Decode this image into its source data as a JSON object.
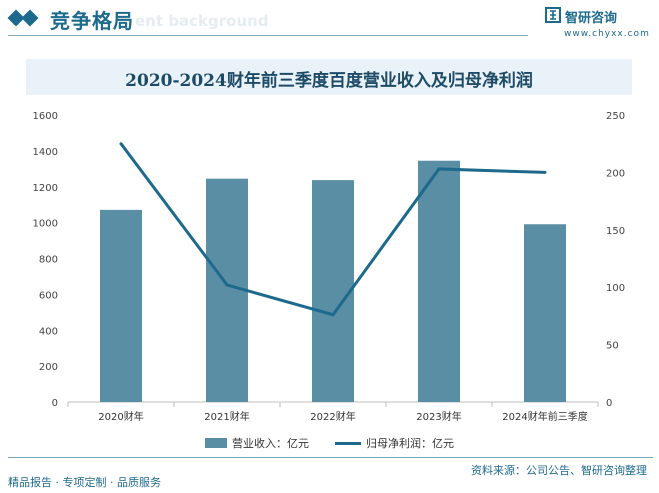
{
  "header": {
    "title": "竞争格局",
    "ghost_text": "ent background"
  },
  "brand": {
    "name": "智研咨询",
    "url": "www.chyxx.com",
    "icon": "zhiyan-logo-icon"
  },
  "footer": {
    "left": "精品报告 · 专项定制 · 品质服务",
    "right": "资料来源：公司公告、智研咨询整理"
  },
  "colors": {
    "brand": "#1e6a8d",
    "bar": "#5a8ea5",
    "line": "#1e6a8d",
    "title_band": "#e9f2f8"
  },
  "chart_data": {
    "type": "bar",
    "title": "2020-2024财年前三季度百度营业收入及归母净利润",
    "categories": [
      "2020财年",
      "2021财年",
      "2022财年",
      "2023财年",
      "2024财年前三季度"
    ],
    "series": [
      {
        "name": "营业收入：亿元",
        "type": "bar",
        "axis": "left",
        "values": [
          1071,
          1245,
          1237,
          1345,
          991
        ]
      },
      {
        "name": "归母净利润：亿元",
        "type": "line",
        "axis": "right",
        "values": [
          225,
          102,
          76,
          203,
          200
        ]
      }
    ],
    "y_left": {
      "min": 0,
      "max": 1600,
      "ticks": [
        0,
        200,
        400,
        600,
        800,
        1000,
        1200,
        1400,
        1600
      ]
    },
    "y_right": {
      "min": 0,
      "max": 250,
      "ticks": [
        0,
        50,
        100,
        150,
        200,
        250
      ]
    },
    "grid": false,
    "legend": "bottom"
  }
}
